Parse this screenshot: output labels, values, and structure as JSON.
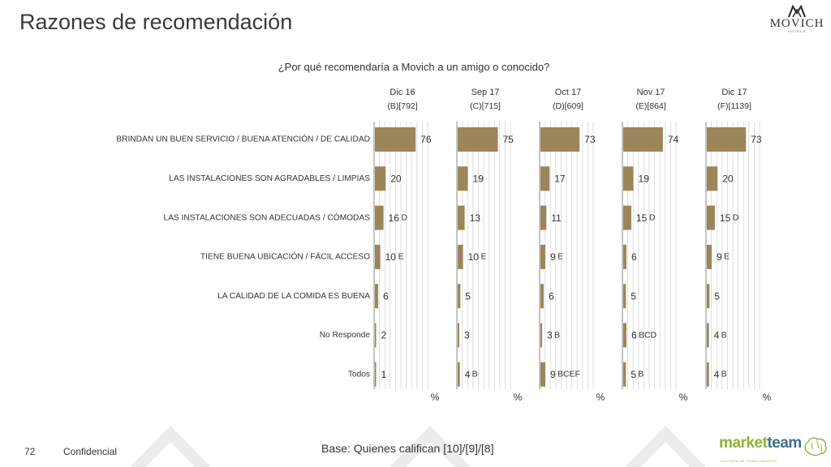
{
  "page": {
    "title": "Razones de recomendación",
    "question": "¿Por qué recomendaría a Movich a un amigo o conocido?",
    "page_number": "72",
    "confidential": "Confidencial",
    "base_note": "Base: Quienes califican [10]/[9]/[8]",
    "brand_logo": {
      "word": "MOVICH",
      "sub": "HOTELS"
    },
    "partner_logo": {
      "word1": "market",
      "word2": "team",
      "tagline": "CULTURA DE CONOCIMIENTO"
    }
  },
  "colors": {
    "bar": "#9b8559",
    "grid": "#d0d0d0",
    "axis": "#888888",
    "text": "#333333"
  },
  "chart_data": {
    "type": "bar",
    "orientation": "horizontal",
    "categories": [
      "BRINDAN UN BUEN SERVICIO / BUENA ATENCIÓN / DE CALIDAD",
      "LAS INSTALACIONES SON AGRADABLES / LIMPIAS",
      "LAS INSTALACIONES SON ADECUADAS / CÓMODAS",
      "TIENE BUENA UBICACIÓN / FÁCIL ACCESO",
      "LA CALIDAD DE LA COMIDA ES BUENA",
      "No Responde",
      "Todos"
    ],
    "xlim": [
      0,
      100
    ],
    "unit_label": "%",
    "grid": true,
    "series": [
      {
        "name": "Dic 16",
        "base": "(B)[792]",
        "values": [
          76,
          20,
          16,
          10,
          6,
          2,
          1
        ],
        "sig": [
          "",
          "",
          "D",
          "E",
          "",
          "",
          ""
        ]
      },
      {
        "name": "Sep 17",
        "base": "(C)[715]",
        "values": [
          75,
          19,
          13,
          10,
          5,
          3,
          4
        ],
        "sig": [
          "",
          "",
          "",
          "E",
          "",
          "",
          "B"
        ]
      },
      {
        "name": "Oct 17",
        "base": "(D)[609]",
        "values": [
          73,
          17,
          11,
          9,
          6,
          3,
          9
        ],
        "sig": [
          "",
          "",
          "",
          "E",
          "",
          "B",
          "BCEF"
        ]
      },
      {
        "name": "Nov 17",
        "base": "(E)[864]",
        "values": [
          74,
          19,
          15,
          6,
          5,
          6,
          5
        ],
        "sig": [
          "",
          "",
          "D",
          "",
          "",
          "BCD",
          "B"
        ]
      },
      {
        "name": "Dic 17",
        "base": "(F)[1139]",
        "values": [
          73,
          20,
          15,
          9,
          5,
          4,
          4
        ],
        "sig": [
          "",
          "",
          "D",
          "E",
          "",
          "B",
          "B"
        ]
      }
    ]
  }
}
